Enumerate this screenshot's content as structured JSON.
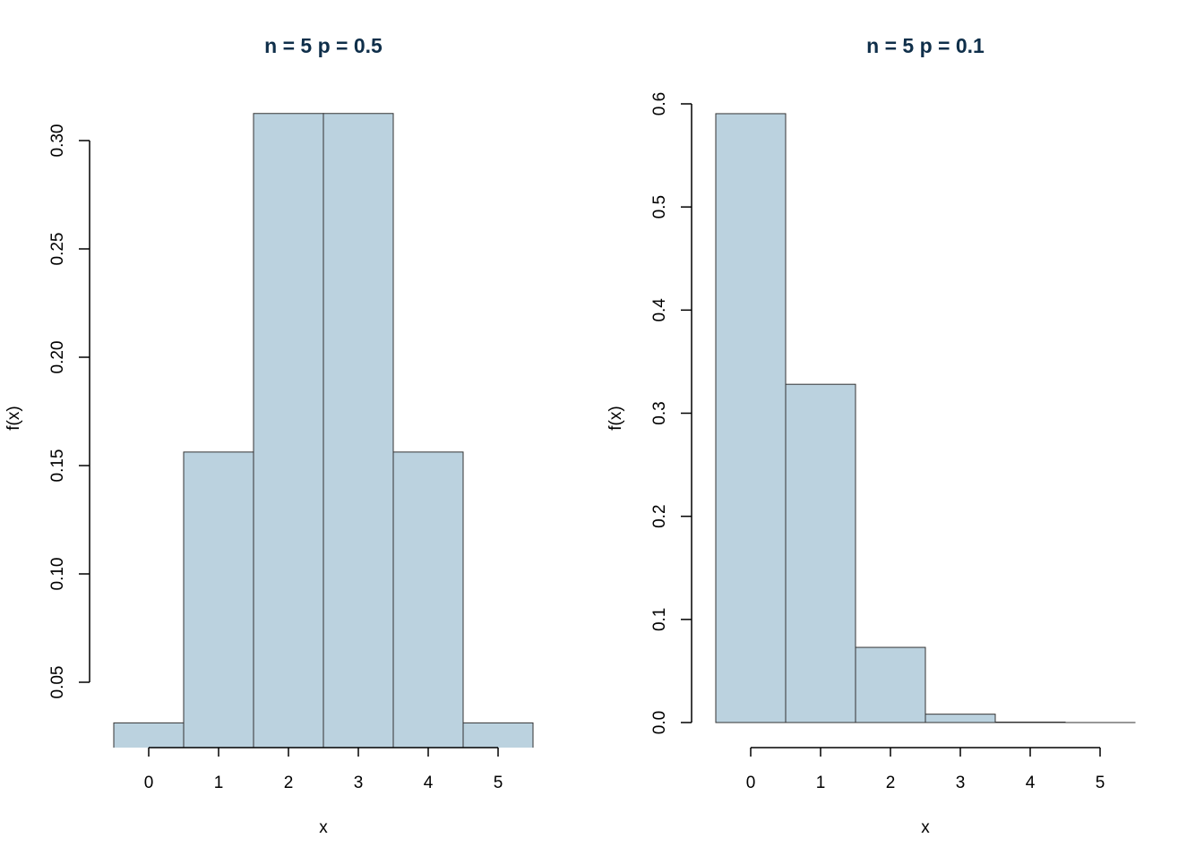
{
  "colors": {
    "bar_fill": "#bbd2df",
    "bar_stroke": "#333333",
    "title": "#0f2f4a",
    "axis": "#000000"
  },
  "chart_data": [
    {
      "type": "bar",
      "title": "n = 5 p = 0.5",
      "xlabel": "x",
      "ylabel": "f(x)",
      "categories": [
        "0",
        "1",
        "2",
        "3",
        "4",
        "5"
      ],
      "values": [
        0.03125,
        0.15625,
        0.3125,
        0.3125,
        0.15625,
        0.03125
      ],
      "xlim": [
        -0.5,
        5.5
      ],
      "ylim": [
        0.0198,
        0.3125
      ],
      "yticks": [
        0.05,
        0.1,
        0.15,
        0.2,
        0.25,
        0.3
      ],
      "ytick_labels": [
        "0.05",
        "0.10",
        "0.15",
        "0.20",
        "0.25",
        "0.30"
      ],
      "xticks": [
        0,
        1,
        2,
        3,
        4,
        5
      ],
      "grid": false
    },
    {
      "type": "bar",
      "title": "n = 5 p = 0.1",
      "xlabel": "x",
      "ylabel": "f(x)",
      "categories": [
        "0",
        "1",
        "2",
        "3",
        "4",
        "5"
      ],
      "values": [
        0.59049,
        0.32805,
        0.0729,
        0.0081,
        0.00045,
        1e-05
      ],
      "xlim": [
        -0.5,
        5.5
      ],
      "ylim": [
        0,
        0.6
      ],
      "yticks": [
        0,
        0.1,
        0.2,
        0.3,
        0.4,
        0.5,
        0.6
      ],
      "ytick_labels": [
        "0.0",
        "0.1",
        "0.2",
        "0.3",
        "0.4",
        "0.5",
        "0.6"
      ],
      "xticks": [
        0,
        1,
        2,
        3,
        4,
        5
      ],
      "grid": false
    }
  ]
}
